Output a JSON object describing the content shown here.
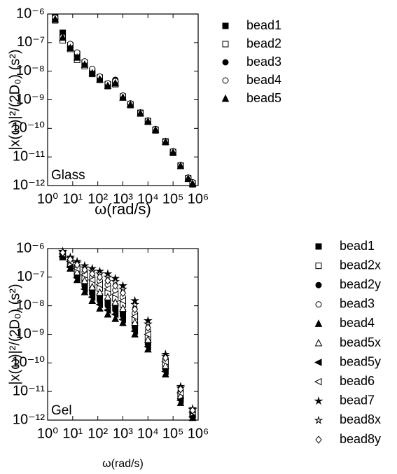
{
  "chart_data": [
    {
      "type": "scatter",
      "annotation": "Glass",
      "x_label": "ω(rad/s)",
      "y_label": "|x(ω)|²/(2D₀) (s²)",
      "xscale": "log",
      "yscale": "log",
      "xlim": [
        1,
        1000000
      ],
      "ylim": [
        1e-12,
        1e-06
      ],
      "xticks": [
        {
          "value": 1,
          "label": "10⁰"
        },
        {
          "value": 10,
          "label": "10¹"
        },
        {
          "value": 100,
          "label": "10²"
        },
        {
          "value": 1000,
          "label": "10³"
        },
        {
          "value": 10000,
          "label": "10⁴"
        },
        {
          "value": 100000,
          "label": "10⁵"
        },
        {
          "value": 1000000,
          "label": "10⁶"
        }
      ],
      "yticks": [
        {
          "value": 1e-12,
          "label": "10⁻¹²"
        },
        {
          "value": 1e-11,
          "label": "10⁻¹¹"
        },
        {
          "value": 1e-10,
          "label": "10⁻¹⁰"
        },
        {
          "value": 1e-09,
          "label": "10⁻⁹"
        },
        {
          "value": 1e-08,
          "label": "10⁻⁸"
        },
        {
          "value": 1e-07,
          "label": "10⁻⁷"
        },
        {
          "value": 1e-06,
          "label": "10⁻⁶"
        }
      ],
      "legend": "upper right",
      "x": [
        2,
        4,
        8,
        15,
        30,
        60,
        120,
        250,
        500,
        1000,
        2000,
        5000,
        10000,
        20000,
        50000,
        100000,
        200000,
        400000,
        600000
      ],
      "series": [
        {
          "name": "bead1",
          "color": "#000000",
          "marker": "square-filled",
          "values": [
            8e-07,
            2.2e-07,
            8e-08,
            4e-08,
            2e-08,
            1e-08,
            6e-09,
            3.5e-09,
            4e-09,
            1.3e-09,
            7e-10,
            3.5e-10,
            1.8e-10,
            9e-11,
            3.5e-11,
            1.5e-11,
            5e-12,
            1.8e-12,
            1.2e-12
          ]
        },
        {
          "name": "bead2",
          "color": "#000000",
          "marker": "square-open",
          "values": [
            6e-07,
            1.2e-07,
            6e-08,
            2.5e-08,
            1.5e-08,
            8e-09,
            5e-09,
            3e-09,
            3.5e-09,
            1.2e-09,
            6.5e-10,
            3.3e-10,
            1.7e-10,
            8.5e-11,
            3.3e-11,
            1.4e-11,
            4.8e-12,
            1.7e-12,
            1.1e-12
          ]
        },
        {
          "name": "bead3",
          "color": "#000000",
          "marker": "circle-filled",
          "values": [
            7e-07,
            1.8e-07,
            7e-08,
            3.5e-08,
            1.8e-08,
            9e-09,
            5.5e-09,
            3.2e-09,
            5e-09,
            1.3e-09,
            7e-10,
            3.4e-10,
            1.8e-10,
            9e-11,
            3.4e-11,
            1.5e-11,
            5e-12,
            1.8e-12,
            1.2e-12
          ]
        },
        {
          "name": "bead4",
          "color": "#000000",
          "marker": "circle-open",
          "values": [
            7.5e-07,
            1.6e-07,
            9e-08,
            4.5e-08,
            2.2e-08,
            1.2e-08,
            6.5e-09,
            3.8e-09,
            4.5e-09,
            1.4e-09,
            7.5e-10,
            3.6e-10,
            1.9e-10,
            9.5e-11,
            3.6e-11,
            1.6e-11,
            5.2e-12,
            1.9e-12,
            1.3e-12
          ]
        },
        {
          "name": "bead5",
          "color": "#000000",
          "marker": "triangle-filled",
          "values": [
            6.5e-07,
            1.5e-07,
            6.5e-08,
            3e-08,
            1.7e-08,
            8.5e-09,
            5.2e-09,
            3.1e-09,
            3.8e-09,
            1.2e-09,
            6.8e-10,
            3.4e-10,
            1.75e-10,
            8.8e-11,
            3.4e-11,
            1.45e-11,
            4.9e-12,
            1.75e-12,
            1.15e-12
          ]
        }
      ]
    },
    {
      "type": "scatter",
      "annotation": "Gel",
      "x_label": "ω(rad/s)",
      "y_label": "|x(ω)|²/(2D₀) (s²)",
      "xscale": "log",
      "yscale": "log",
      "xlim": [
        1,
        1000000
      ],
      "ylim": [
        1e-12,
        1e-06
      ],
      "xticks": [
        {
          "value": 1,
          "label": "10⁰"
        },
        {
          "value": 10,
          "label": "10¹"
        },
        {
          "value": 100,
          "label": "10²"
        },
        {
          "value": 1000,
          "label": "10³"
        },
        {
          "value": 10000,
          "label": "10⁴"
        },
        {
          "value": 100000,
          "label": "10⁵"
        },
        {
          "value": 1000000,
          "label": "10⁶"
        }
      ],
      "yticks": [
        {
          "value": 1e-12,
          "label": "10⁻¹²"
        },
        {
          "value": 1e-11,
          "label": "10⁻¹¹"
        },
        {
          "value": 1e-10,
          "label": "10⁻¹⁰"
        },
        {
          "value": 1e-09,
          "label": "10⁻⁹"
        },
        {
          "value": 1e-08,
          "label": "10⁻⁸"
        },
        {
          "value": 1e-07,
          "label": "10⁻⁷"
        },
        {
          "value": 1e-06,
          "label": "10⁻⁶"
        }
      ],
      "legend": "outside right",
      "x": [
        4,
        8,
        15,
        30,
        60,
        120,
        250,
        500,
        1000,
        3000,
        10000,
        50000,
        200000,
        600000
      ],
      "series": [
        {
          "name": "bead1",
          "color": "#000000",
          "marker": "square-filled",
          "values": [
            5.7e-07,
            2.7e-07,
            1.3e-07,
            6e-08,
            3.5e-08,
            2.1e-08,
            1.4e-08,
            9.5e-09,
            6e-09,
            2.1e-09,
            5.5e-10,
            7e-11,
            6e-12,
            1.5e-12
          ]
        },
        {
          "name": "bead2x",
          "color": "#000000",
          "marker": "square-open",
          "values": [
            6.3e-07,
            3.2e-07,
            1.7e-07,
            9.5e-08,
            6e-08,
            4e-08,
            2.8e-08,
            1.8e-08,
            1.1e-08,
            3.3e-09,
            8e-10,
            9e-11,
            8e-12,
            1.7e-12
          ]
        },
        {
          "name": "bead2y",
          "color": "#000000",
          "marker": "circle-filled",
          "values": [
            5.5e-07,
            2.5e-07,
            1.1e-07,
            4.8e-08,
            2.6e-08,
            1.5e-08,
            1e-08,
            7e-09,
            4.5e-09,
            1.7e-09,
            4.5e-10,
            6e-11,
            5.5e-12,
            1.4e-12
          ]
        },
        {
          "name": "bead3",
          "color": "#000000",
          "marker": "circle-open",
          "values": [
            6.8e-07,
            3.8e-07,
            2.3e-07,
            1.5e-07,
            1e-07,
            7.5e-08,
            5.5e-08,
            3.5e-08,
            2e-08,
            5.5e-09,
            1.3e-09,
            1.3e-10,
            1e-11,
            2e-12
          ]
        },
        {
          "name": "bead4",
          "color": "#000000",
          "marker": "triangle-filled",
          "values": [
            5e-07,
            2e-07,
            8e-08,
            3e-08,
            1.5e-08,
            8e-09,
            5e-09,
            3.5e-09,
            2.5e-09,
            1e-09,
            3e-10,
            4e-11,
            4e-12,
            1.2e-12
          ]
        },
        {
          "name": "bead5x",
          "color": "#000000",
          "marker": "triangle-open",
          "values": [
            6e-07,
            3e-07,
            1.5e-07,
            7.5e-08,
            4.5e-08,
            2.9e-08,
            2e-08,
            1.3e-08,
            8e-09,
            2.6e-09,
            6.5e-10,
            8e-11,
            7e-12,
            1.6e-12
          ]
        },
        {
          "name": "bead5y",
          "color": "#000000",
          "marker": "left-filled",
          "values": [
            5.2e-07,
            2.2e-07,
            9.5e-08,
            3.8e-08,
            2e-08,
            1.1e-08,
            7e-09,
            5e-09,
            3.3e-09,
            1.3e-09,
            3.7e-10,
            5e-11,
            5e-12,
            1.3e-12
          ]
        },
        {
          "name": "bead6",
          "color": "#000000",
          "marker": "left-open",
          "values": [
            6.5e-07,
            3.5e-07,
            2e-07,
            1.2e-07,
            8e-08,
            5.5e-08,
            3.9e-08,
            2.5e-08,
            1.5e-08,
            4.2e-09,
            1e-09,
            1.1e-10,
            9e-12,
            1.9e-12
          ]
        },
        {
          "name": "bead7",
          "color": "#000000",
          "marker": "star-filled",
          "values": [
            8e-07,
            5e-07,
            3.5e-07,
            2.5e-07,
            2e-07,
            1.6e-07,
            1.3e-07,
            9e-08,
            5e-08,
            1.5e-08,
            3e-09,
            2e-10,
            1.5e-11,
            2.5e-12
          ]
        },
        {
          "name": "bead8x",
          "color": "#000000",
          "marker": "star-open",
          "values": [
            7.6e-07,
            4.6e-07,
            3.1e-07,
            2.1e-07,
            1.6e-07,
            1.3e-07,
            1e-07,
            7e-08,
            3.8e-08,
            1.1e-08,
            2.3e-09,
            1.7e-10,
            1.3e-11,
            2.3e-12
          ]
        },
        {
          "name": "bead8y",
          "color": "#000000",
          "marker": "diamond-open",
          "values": [
            7.2e-07,
            4.2e-07,
            2.7e-07,
            1.8e-07,
            1.3e-07,
            1e-07,
            7.5e-08,
            5e-08,
            2.8e-08,
            7.5e-09,
            1.7e-09,
            1.5e-10,
            1.2e-11,
            2.2e-12
          ]
        }
      ]
    }
  ]
}
